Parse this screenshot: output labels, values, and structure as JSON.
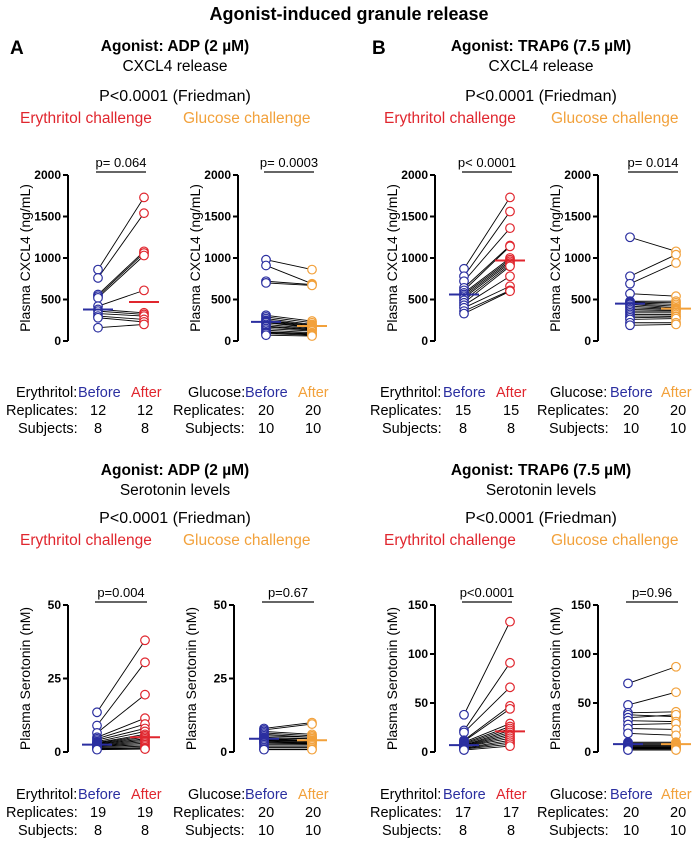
{
  "title": "Agonist-induced granule release",
  "colors": {
    "before": "#2b2fa0",
    "erythritol": "#e0262e",
    "glucose": "#f2a13b",
    "line": "#000000"
  },
  "panels": [
    {
      "letter": "A",
      "sections": [
        {
          "agonist": "Agonist: ADP (2 µM)",
          "measure": "CXCL4 release",
          "friedman": "P<0.0001 (Friedman)",
          "erythritol_label": "Erythritol challenge",
          "glucose_label": "Glucose challenge",
          "table": {
            "ery_header": "Erythritol:",
            "glu_header": "Glucose:",
            "before": "Before",
            "after": "After",
            "replicates_label": "Replicates:",
            "subjects_label": "Subjects:",
            "ery_replicates": [
              "12",
              "12"
            ],
            "ery_subjects": [
              "8",
              "8"
            ],
            "glu_replicates": [
              "20",
              "20"
            ],
            "glu_subjects": [
              "10",
              "10"
            ]
          }
        },
        {
          "agonist": "Agonist: ADP (2 µM)",
          "measure": "Serotonin levels",
          "friedman": "P<0.0001 (Friedman)",
          "erythritol_label": "Erythritol challenge",
          "glucose_label": "Glucose challenge",
          "table": {
            "ery_header": "Erythritol:",
            "glu_header": "Glucose:",
            "before": "Before",
            "after": "After",
            "replicates_label": "Replicates:",
            "subjects_label": "Subjects:",
            "ery_replicates": [
              "19",
              "19"
            ],
            "ery_subjects": [
              "8",
              "8"
            ],
            "glu_replicates": [
              "20",
              "20"
            ],
            "glu_subjects": [
              "10",
              "10"
            ]
          }
        }
      ]
    },
    {
      "letter": "B",
      "sections": [
        {
          "agonist": "Agonist: TRAP6 (7.5 µM)",
          "measure": "CXCL4 release",
          "friedman": "P<0.0001 (Friedman)",
          "erythritol_label": "Erythritol challenge",
          "glucose_label": "Glucose challenge",
          "table": {
            "ery_header": "Erythritol:",
            "glu_header": "Glucose:",
            "before": "Before",
            "after": "After",
            "replicates_label": "Replicates:",
            "subjects_label": "Subjects:",
            "ery_replicates": [
              "15",
              "15"
            ],
            "ery_subjects": [
              "8",
              "8"
            ],
            "glu_replicates": [
              "20",
              "20"
            ],
            "glu_subjects": [
              "10",
              "10"
            ]
          }
        },
        {
          "agonist": "Agonist: TRAP6 (7.5 µM)",
          "measure": "Serotonin levels",
          "friedman": "P<0.0001 (Friedman)",
          "erythritol_label": "Erythritol challenge",
          "glucose_label": "Glucose challenge",
          "table": {
            "ery_header": "Erythritol:",
            "glu_header": "Glucose:",
            "before": "Before",
            "after": "After",
            "replicates_label": "Replicates:",
            "subjects_label": "Subjects:",
            "ery_replicates": [
              "17",
              "17"
            ],
            "ery_subjects": [
              "8",
              "8"
            ],
            "glu_replicates": [
              "20",
              "20"
            ],
            "glu_subjects": [
              "10",
              "10"
            ]
          }
        }
      ]
    }
  ],
  "chart_data": [
    {
      "id": "A-cxcl4-ery",
      "type": "scatter",
      "subtype": "paired",
      "ylabel": "Plasma CXCL4 (ng/mL)",
      "ylim": [
        0,
        2000
      ],
      "yticks": [
        0,
        500,
        1000,
        1500,
        2000
      ],
      "pvalue": "p= 0.064",
      "after_color": "erythritol",
      "pairs": [
        [
          860,
          1730
        ],
        [
          760,
          1540
        ],
        [
          560,
          1080
        ],
        [
          540,
          1060
        ],
        [
          520,
          1030
        ],
        [
          420,
          610
        ],
        [
          380,
          340
        ],
        [
          360,
          320
        ],
        [
          330,
          300
        ],
        [
          300,
          260
        ],
        [
          280,
          230
        ],
        [
          160,
          200
        ]
      ],
      "median_before": 380,
      "median_after": 470
    },
    {
      "id": "A-cxcl4-glu",
      "type": "scatter",
      "subtype": "paired",
      "ylabel": "Plasma CXCL4 (ng/mL)",
      "ylim": [
        0,
        2000
      ],
      "yticks": [
        0,
        500,
        1000,
        1500,
        2000
      ],
      "pvalue": "p= 0.0003",
      "after_color": "glucose",
      "pairs": [
        [
          980,
          860
        ],
        [
          910,
          690
        ],
        [
          720,
          680
        ],
        [
          700,
          670
        ],
        [
          310,
          240
        ],
        [
          290,
          220
        ],
        [
          270,
          200
        ],
        [
          250,
          190
        ],
        [
          240,
          180
        ],
        [
          230,
          170
        ],
        [
          220,
          160
        ],
        [
          200,
          150
        ],
        [
          180,
          140
        ],
        [
          170,
          130
        ],
        [
          150,
          120
        ],
        [
          130,
          100
        ],
        [
          110,
          90
        ],
        [
          100,
          80
        ],
        [
          90,
          70
        ],
        [
          70,
          60
        ]
      ],
      "median_before": 230,
      "median_after": 180
    },
    {
      "id": "B-cxcl4-ery",
      "type": "scatter",
      "subtype": "paired",
      "ylabel": "Plasma CXCL4 (ng/mL)",
      "ylim": [
        0,
        2000
      ],
      "yticks": [
        0,
        500,
        1000,
        1500,
        2000
      ],
      "pvalue": "p< 0.0001",
      "after_color": "erythritol",
      "pairs": [
        [
          870,
          1730
        ],
        [
          780,
          1560
        ],
        [
          720,
          1360
        ],
        [
          640,
          1150
        ],
        [
          610,
          1140
        ],
        [
          580,
          1000
        ],
        [
          560,
          980
        ],
        [
          540,
          960
        ],
        [
          520,
          940
        ],
        [
          490,
          920
        ],
        [
          460,
          900
        ],
        [
          430,
          780
        ],
        [
          400,
          660
        ],
        [
          360,
          610
        ],
        [
          330,
          600
        ]
      ],
      "median_before": 560,
      "median_after": 970
    },
    {
      "id": "B-cxcl4-glu",
      "type": "scatter",
      "subtype": "paired",
      "ylabel": "Plasma CXCL4 (ng/mL)",
      "ylim": [
        0,
        2000
      ],
      "yticks": [
        0,
        500,
        1000,
        1500,
        2000
      ],
      "pvalue": "p= 0.014",
      "after_color": "glucose",
      "pairs": [
        [
          1250,
          1080
        ],
        [
          780,
          1040
        ],
        [
          690,
          940
        ],
        [
          570,
          540
        ],
        [
          480,
          480
        ],
        [
          470,
          460
        ],
        [
          460,
          440
        ],
        [
          450,
          420
        ],
        [
          440,
          400
        ],
        [
          420,
          390
        ],
        [
          400,
          380
        ],
        [
          380,
          370
        ],
        [
          360,
          360
        ],
        [
          340,
          340
        ],
        [
          320,
          320
        ],
        [
          300,
          300
        ],
        [
          280,
          290
        ],
        [
          260,
          270
        ],
        [
          220,
          220
        ],
        [
          190,
          200
        ]
      ],
      "median_before": 450,
      "median_after": 390
    },
    {
      "id": "A-sero-ery",
      "type": "scatter",
      "subtype": "paired",
      "ylabel": "Plasma Serotonin (nM)",
      "ylim": [
        0,
        50
      ],
      "yticks": [
        0,
        25,
        50
      ],
      "pvalue": "p=0.004",
      "after_color": "erythritol",
      "pairs": [
        [
          13.5,
          38
        ],
        [
          9,
          30.5
        ],
        [
          6.5,
          19.5
        ],
        [
          5,
          11.5
        ],
        [
          4.5,
          9.5
        ],
        [
          4,
          8
        ],
        [
          3.5,
          7
        ],
        [
          3.2,
          6
        ],
        [
          3,
          5.5
        ],
        [
          2.8,
          5
        ],
        [
          2.6,
          4.5
        ],
        [
          2.4,
          4
        ],
        [
          2.2,
          3.5
        ],
        [
          2,
          3
        ],
        [
          1.8,
          2.5
        ],
        [
          1.5,
          2
        ],
        [
          1.2,
          1.5
        ],
        [
          1,
          1.2
        ],
        [
          0.8,
          1
        ]
      ],
      "median_before": 2.5,
      "median_after": 5
    },
    {
      "id": "A-sero-glu",
      "type": "scatter",
      "subtype": "paired",
      "ylabel": "Plasma Serotonin (nM)",
      "ylim": [
        0,
        50
      ],
      "yticks": [
        0,
        25,
        50
      ],
      "pvalue": "p=0.67",
      "after_color": "glucose",
      "pairs": [
        [
          8,
          10
        ],
        [
          7.5,
          9.5
        ],
        [
          7,
          6
        ],
        [
          6.5,
          5.5
        ],
        [
          6,
          5
        ],
        [
          5.5,
          5
        ],
        [
          5,
          4.5
        ],
        [
          4.8,
          4.5
        ],
        [
          4.5,
          4
        ],
        [
          4.2,
          4
        ],
        [
          4,
          3.8
        ],
        [
          3.8,
          3.5
        ],
        [
          3.5,
          3.2
        ],
        [
          3.2,
          3
        ],
        [
          3,
          2.8
        ],
        [
          2.5,
          2.5
        ],
        [
          2,
          2
        ],
        [
          1.5,
          1.5
        ],
        [
          1,
          1
        ],
        [
          0.8,
          0.8
        ]
      ],
      "median_before": 4.5,
      "median_after": 4
    },
    {
      "id": "B-sero-ery",
      "type": "scatter",
      "subtype": "paired",
      "ylabel": "Plasma Serotonin (nM)",
      "ylim": [
        0,
        150
      ],
      "yticks": [
        0,
        50,
        100,
        150
      ],
      "pvalue": "p<0.0001",
      "after_color": "erythritol",
      "pairs": [
        [
          38,
          133
        ],
        [
          22,
          91
        ],
        [
          20,
          66
        ],
        [
          12,
          47
        ],
        [
          11,
          44
        ],
        [
          10,
          29
        ],
        [
          9,
          26
        ],
        [
          8,
          24
        ],
        [
          7,
          22
        ],
        [
          6.5,
          20
        ],
        [
          6,
          18
        ],
        [
          5.5,
          16
        ],
        [
          5,
          14
        ],
        [
          4,
          12
        ],
        [
          3.5,
          10
        ],
        [
          3,
          8
        ],
        [
          2,
          6
        ]
      ],
      "median_before": 7,
      "median_after": 21
    },
    {
      "id": "B-sero-glu",
      "type": "scatter",
      "subtype": "paired",
      "ylabel": "Plasma Serotonin (nM)",
      "ylim": [
        0,
        150
      ],
      "yticks": [
        0,
        50,
        100,
        150
      ],
      "pvalue": "p=0.96",
      "after_color": "glucose",
      "pairs": [
        [
          70,
          87
        ],
        [
          48,
          61
        ],
        [
          40,
          41
        ],
        [
          38,
          36
        ],
        [
          35,
          38
        ],
        [
          32,
          31
        ],
        [
          28,
          29
        ],
        [
          24,
          23
        ],
        [
          19,
          17
        ],
        [
          10,
          10
        ],
        [
          9,
          9
        ],
        [
          8,
          8
        ],
        [
          7,
          7
        ],
        [
          6,
          6
        ],
        [
          5,
          5
        ],
        [
          4.5,
          4.5
        ],
        [
          4,
          4
        ],
        [
          3.5,
          3.5
        ],
        [
          3,
          3
        ],
        [
          2,
          2
        ]
      ],
      "median_before": 8,
      "median_after": 8
    }
  ]
}
